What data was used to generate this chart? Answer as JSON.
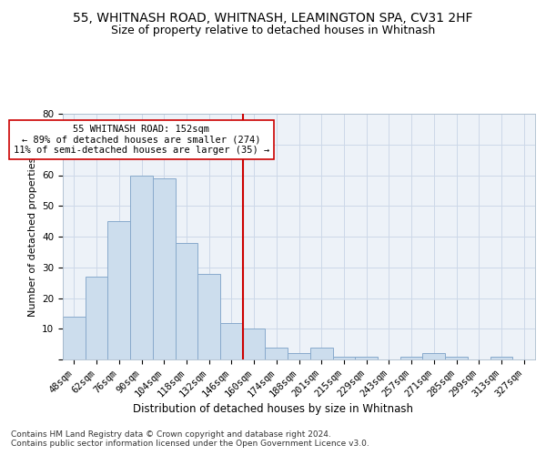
{
  "title1": "55, WHITNASH ROAD, WHITNASH, LEAMINGTON SPA, CV31 2HF",
  "title2": "Size of property relative to detached houses in Whitnash",
  "xlabel": "Distribution of detached houses by size in Whitnash",
  "ylabel": "Number of detached properties",
  "bin_labels": [
    "48sqm",
    "62sqm",
    "76sqm",
    "90sqm",
    "104sqm",
    "118sqm",
    "132sqm",
    "146sqm",
    "160sqm",
    "174sqm",
    "188sqm",
    "201sqm",
    "215sqm",
    "229sqm",
    "243sqm",
    "257sqm",
    "271sqm",
    "285sqm",
    "299sqm",
    "313sqm",
    "327sqm"
  ],
  "bar_heights": [
    14,
    27,
    45,
    60,
    59,
    38,
    28,
    12,
    10,
    4,
    2,
    4,
    1,
    1,
    0,
    1,
    2,
    1,
    0,
    1,
    0
  ],
  "bar_color": "#ccdded",
  "bar_edgecolor": "#88aacc",
  "vline_x_bin": 7.5,
  "vline_color": "#cc0000",
  "annotation_text": "55 WHITNASH ROAD: 152sqm\n← 89% of detached houses are smaller (274)\n11% of semi-detached houses are larger (35) →",
  "annotation_box_facecolor": "#ffffff",
  "annotation_box_edgecolor": "#cc0000",
  "ylim": [
    0,
    80
  ],
  "yticks": [
    0,
    10,
    20,
    30,
    40,
    50,
    60,
    70,
    80
  ],
  "grid_color": "#ccd8e8",
  "background_color": "#edf2f8",
  "footer": "Contains HM Land Registry data © Crown copyright and database right 2024.\nContains public sector information licensed under the Open Government Licence v3.0.",
  "title1_fontsize": 10,
  "title2_fontsize": 9,
  "xlabel_fontsize": 8.5,
  "ylabel_fontsize": 8,
  "tick_fontsize": 7.5,
  "footer_fontsize": 6.5
}
